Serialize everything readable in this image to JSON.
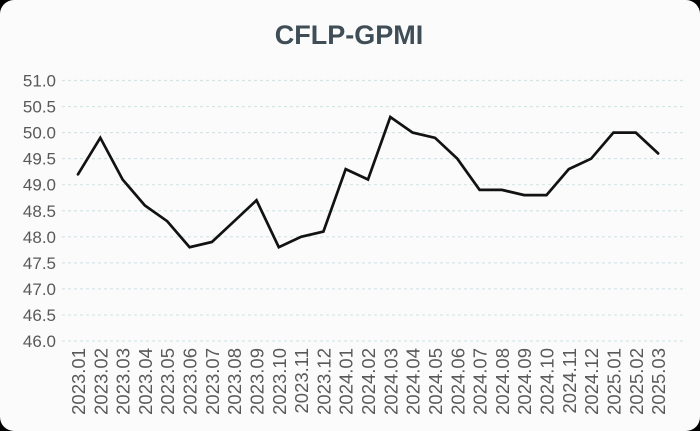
{
  "chart": {
    "title": "CFLP-GPMI"
  },
  "chart_data": {
    "type": "line",
    "title": "CFLP-GPMI",
    "xlabel": "",
    "ylabel": "",
    "categories": [
      "2023.01",
      "2023.02",
      "2023.03",
      "2023.04",
      "2023.05",
      "2023.06",
      "2023.07",
      "2023.08",
      "2023.09",
      "2023.10",
      "2023.11",
      "2023.12",
      "2024.01",
      "2024.02",
      "2024.03",
      "2024.04",
      "2024.05",
      "2024.06",
      "2024.07",
      "2024.08",
      "2024.09",
      "2024.10",
      "2024.11",
      "2024.12",
      "2025.01",
      "2025.02",
      "2025.03"
    ],
    "series": [
      {
        "name": "CFLP-GPMI",
        "values": [
          49.2,
          49.9,
          49.1,
          48.6,
          48.3,
          47.8,
          47.9,
          48.3,
          48.7,
          47.8,
          48.0,
          48.1,
          49.3,
          49.1,
          50.3,
          50.0,
          49.9,
          49.5,
          48.9,
          48.9,
          48.8,
          48.8,
          49.3,
          49.5,
          50.0,
          50.0,
          49.6
        ]
      }
    ],
    "ylim": [
      46.0,
      51.0
    ],
    "ytick_step": 0.5,
    "ytick_labels": [
      "46.0",
      "46.5",
      "47.0",
      "47.5",
      "48.0",
      "48.5",
      "49.0",
      "49.5",
      "50.0",
      "50.5",
      "51.0"
    ],
    "grid": true,
    "gridline_style": "dashed",
    "legend": false,
    "colors": {
      "line": "#121212",
      "background": "#fbfbfb",
      "outer_background": "#000000",
      "gridline": "#d5e5e6",
      "tick_label": "#595959",
      "title": "#3f4d56"
    }
  }
}
